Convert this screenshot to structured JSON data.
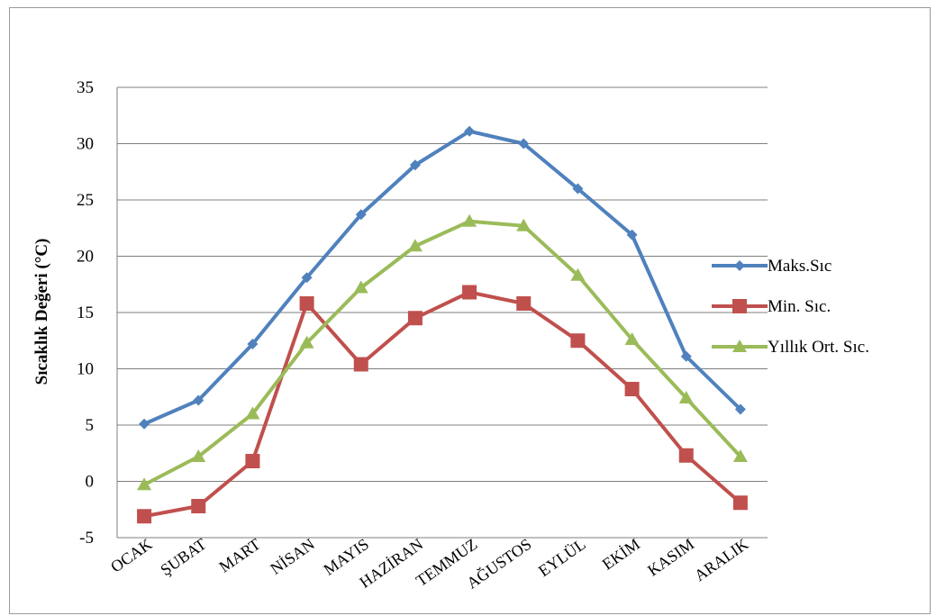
{
  "chart_data": {
    "type": "line",
    "ylabel": "Sıcaklık Değeri (°C)",
    "ylim": [
      -5,
      35
    ],
    "yticks": [
      -5,
      0,
      5,
      10,
      15,
      20,
      25,
      30,
      35
    ],
    "grid": true,
    "legend_position": "right",
    "categories": [
      "OCAK",
      "ŞUBAT",
      "MART",
      "NİSAN",
      "MAYIS",
      "HAZİRAN",
      "TEMMUZ",
      "AĞUSTOS",
      "EYLÜL",
      "EKİM",
      "KASIM",
      "ARALIK"
    ],
    "series": [
      {
        "name": "Maks.Sıc",
        "color": "#4f81bd",
        "marker": "diamond",
        "values": [
          5.1,
          7.2,
          12.2,
          18.1,
          23.7,
          28.1,
          31.1,
          30.0,
          26.0,
          21.9,
          11.1,
          6.4
        ]
      },
      {
        "name": "Min. Sıc.",
        "color": "#c0504d",
        "marker": "square",
        "values": [
          -3.1,
          -2.2,
          1.8,
          15.8,
          10.4,
          14.5,
          16.8,
          15.8,
          12.5,
          8.2,
          2.3,
          -1.9
        ]
      },
      {
        "name": "Yıllık Ort. Sıc.",
        "color": "#9bbb59",
        "marker": "triangle",
        "values": [
          -0.3,
          2.2,
          6.0,
          12.3,
          17.2,
          20.9,
          23.1,
          22.7,
          18.3,
          12.6,
          7.4,
          2.2
        ]
      }
    ]
  }
}
